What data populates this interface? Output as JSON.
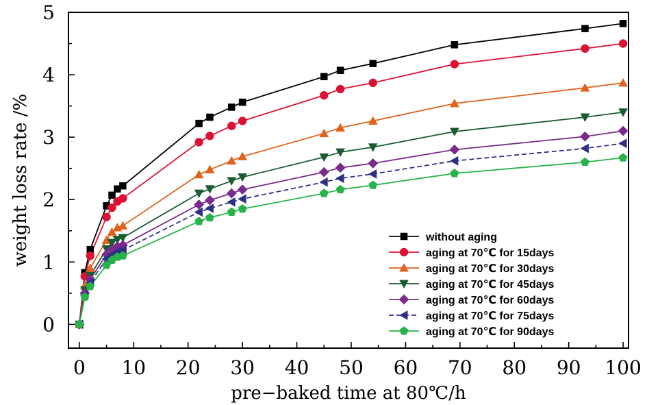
{
  "chart_data": {
    "type": "line",
    "xlabel": "pre−baked time at 80℃/h",
    "ylabel": "weight loss rate /%",
    "xlim": [
      -2,
      101
    ],
    "ylim": [
      -0.38,
      5
    ],
    "xticks": [
      0,
      10,
      20,
      30,
      40,
      50,
      60,
      70,
      80,
      90,
      100
    ],
    "yticks": [
      0,
      1,
      2,
      3,
      4,
      5
    ],
    "x_minor_step": 5,
    "y_minor_step": 0.5,
    "grid": false,
    "legend_position": "bottom-right",
    "series": [
      {
        "name": "without aging",
        "color": "#000000",
        "marker": "square",
        "dashed": false,
        "x": [
          0,
          1,
          2,
          5,
          6,
          7,
          8,
          22,
          24,
          28,
          30,
          45,
          48,
          54,
          69,
          93,
          100
        ],
        "y": [
          0,
          0.83,
          1.2,
          1.9,
          2.07,
          2.17,
          2.22,
          3.22,
          3.32,
          3.48,
          3.56,
          3.97,
          4.07,
          4.18,
          4.48,
          4.74,
          4.82
        ]
      },
      {
        "name": "aging at 70℃ for 15days",
        "color": "#dd1133",
        "marker": "circle",
        "dashed": false,
        "x": [
          0,
          1,
          2,
          5,
          6,
          7,
          8,
          22,
          24,
          28,
          30,
          45,
          48,
          54,
          69,
          93,
          100
        ],
        "y": [
          0,
          0.77,
          1.1,
          1.72,
          1.87,
          1.97,
          2.02,
          2.92,
          3.02,
          3.18,
          3.26,
          3.67,
          3.77,
          3.87,
          4.17,
          4.42,
          4.5
        ]
      },
      {
        "name": "aging at 70℃ for 30days",
        "color": "#e0621d",
        "marker": "triangle-up",
        "dashed": false,
        "x": [
          0,
          1,
          2,
          5,
          6,
          7,
          8,
          22,
          24,
          28,
          30,
          45,
          48,
          54,
          69,
          93,
          100
        ],
        "y": [
          0,
          0.62,
          0.9,
          1.35,
          1.48,
          1.55,
          1.58,
          2.4,
          2.48,
          2.62,
          2.69,
          3.06,
          3.15,
          3.26,
          3.54,
          3.79,
          3.87
        ]
      },
      {
        "name": "aging at 70℃ for 45days",
        "color": "#1a5c32",
        "marker": "triangle-down",
        "dashed": false,
        "x": [
          0,
          1,
          2,
          5,
          6,
          7,
          8,
          22,
          24,
          28,
          30,
          45,
          48,
          54,
          69,
          93,
          100
        ],
        "y": [
          0,
          0.55,
          0.78,
          1.21,
          1.31,
          1.36,
          1.39,
          2.1,
          2.17,
          2.3,
          2.36,
          2.68,
          2.76,
          2.84,
          3.09,
          3.32,
          3.4
        ]
      },
      {
        "name": "aging at 70℃ for 60days",
        "color": "#7a2b8c",
        "marker": "diamond",
        "dashed": false,
        "x": [
          0,
          1,
          2,
          5,
          6,
          7,
          8,
          22,
          24,
          28,
          30,
          45,
          48,
          54,
          69,
          93,
          100
        ],
        "y": [
          0,
          0.5,
          0.72,
          1.12,
          1.2,
          1.25,
          1.27,
          1.92,
          1.99,
          2.1,
          2.16,
          2.44,
          2.51,
          2.58,
          2.8,
          3.01,
          3.1
        ]
      },
      {
        "name": "aging at 70℃ for 75days",
        "color": "#2e2f86",
        "marker": "triangle-left",
        "dashed": true,
        "x": [
          0,
          1,
          2,
          5,
          6,
          7,
          8,
          22,
          24,
          28,
          30,
          45,
          48,
          54,
          69,
          93,
          100
        ],
        "y": [
          0,
          0.47,
          0.67,
          1.05,
          1.12,
          1.17,
          1.19,
          1.8,
          1.86,
          1.96,
          2.01,
          2.28,
          2.34,
          2.41,
          2.62,
          2.82,
          2.9
        ]
      },
      {
        "name": "aging at 70℃ for 90days",
        "color": "#27b34a",
        "marker": "pentagon",
        "dashed": false,
        "x": [
          0,
          1,
          2,
          5,
          6,
          7,
          8,
          22,
          24,
          28,
          30,
          45,
          48,
          54,
          69,
          93,
          100
        ],
        "y": [
          0,
          0.44,
          0.61,
          0.95,
          1.03,
          1.08,
          1.1,
          1.65,
          1.71,
          1.8,
          1.85,
          2.1,
          2.16,
          2.23,
          2.42,
          2.6,
          2.67
        ]
      }
    ]
  }
}
